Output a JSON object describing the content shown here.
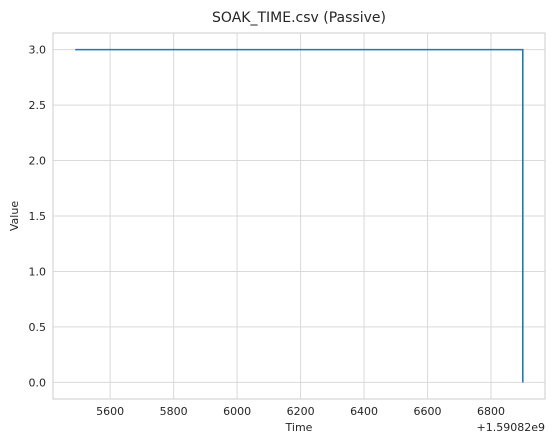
{
  "chart_data": {
    "type": "line",
    "title": "SOAK_TIME.csv (Passive)",
    "xlabel": "Time",
    "ylabel": "Value",
    "x_offset_text": "+1.59082e9",
    "xlim": [
      5420,
      6970
    ],
    "ylim": [
      -0.15,
      3.15
    ],
    "x_ticks": [
      5600,
      5800,
      6000,
      6200,
      6400,
      6600,
      6800
    ],
    "x_tick_labels": [
      "5600",
      "5800",
      "6000",
      "6200",
      "6400",
      "6600",
      "6800"
    ],
    "y_ticks": [
      0.0,
      0.5,
      1.0,
      1.5,
      2.0,
      2.5,
      3.0
    ],
    "y_tick_labels": [
      "0.0",
      "0.5",
      "1.0",
      "1.5",
      "2.0",
      "2.5",
      "3.0"
    ],
    "grid": true,
    "series": [
      {
        "color": "#1f77b4",
        "x": [
          5490,
          6900,
          6900
        ],
        "y": [
          3.0,
          3.0,
          0.0
        ]
      }
    ]
  }
}
